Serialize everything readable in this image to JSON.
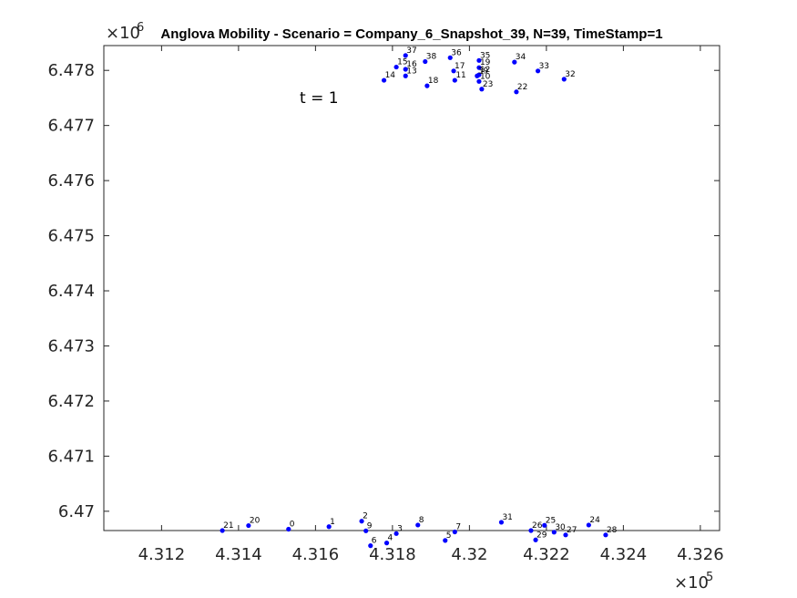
{
  "chart_data": {
    "type": "scatter",
    "title": "Anglova Mobility - Scenario = Company_6_Snapshot_39, N=39, TimeStamp=1",
    "annotation": "t = 1",
    "x_multiplier": "×10",
    "x_exponent": "5",
    "y_multiplier": "×10",
    "y_exponent": "6",
    "xlim": [
      431050,
      432650
    ],
    "ylim": [
      6469650,
      6478450
    ],
    "x_ticks": [
      431200,
      431400,
      431600,
      431800,
      432000,
      432200,
      432400,
      432600
    ],
    "x_tick_labels": [
      "4.312",
      "4.314",
      "4.316",
      "4.318",
      "4.32",
      "4.322",
      "4.324",
      "4.326"
    ],
    "y_ticks": [
      6470000,
      6471000,
      6472000,
      6473000,
      6474000,
      6475000,
      6476000,
      6477000,
      6478000
    ],
    "y_tick_labels": [
      "6.47",
      "6.471",
      "6.472",
      "6.473",
      "6.474",
      "6.475",
      "6.476",
      "6.477",
      "6.478"
    ],
    "grid": false,
    "marker_color": "#0000ff",
    "points": [
      {
        "label": "0",
        "x": 431530,
        "y": 6469675
      },
      {
        "label": "1",
        "x": 431635,
        "y": 6469720
      },
      {
        "label": "2",
        "x": 431720,
        "y": 6469820
      },
      {
        "label": "3",
        "x": 431810,
        "y": 6469595
      },
      {
        "label": "4",
        "x": 431785,
        "y": 6469425
      },
      {
        "label": "5",
        "x": 431937,
        "y": 6469470
      },
      {
        "label": "6",
        "x": 431743,
        "y": 6469375
      },
      {
        "label": "7",
        "x": 431962,
        "y": 6469625
      },
      {
        "label": "8",
        "x": 431866,
        "y": 6469750
      },
      {
        "label": "9",
        "x": 431731,
        "y": 6469645
      },
      {
        "label": "10",
        "x": 432025,
        "y": 6477800
      },
      {
        "label": "11",
        "x": 431962,
        "y": 6477820
      },
      {
        "label": "12",
        "x": 432025,
        "y": 6477920
      },
      {
        "label": "13",
        "x": 431834,
        "y": 6477900
      },
      {
        "label": "14",
        "x": 431778,
        "y": 6477820
      },
      {
        "label": "15",
        "x": 431810,
        "y": 6478060
      },
      {
        "label": "16",
        "x": 431834,
        "y": 6478020
      },
      {
        "label": "17",
        "x": 431959,
        "y": 6477990
      },
      {
        "label": "18",
        "x": 431890,
        "y": 6477720
      },
      {
        "label": "19",
        "x": 432025,
        "y": 6478050
      },
      {
        "label": "20",
        "x": 431426,
        "y": 6469740
      },
      {
        "label": "21",
        "x": 431358,
        "y": 6469650
      },
      {
        "label": "22",
        "x": 432122,
        "y": 6477610
      },
      {
        "label": "23",
        "x": 432032,
        "y": 6477660
      },
      {
        "label": "24",
        "x": 432310,
        "y": 6469750
      },
      {
        "label": "25",
        "x": 432195,
        "y": 6469745
      },
      {
        "label": "26",
        "x": 432160,
        "y": 6469650
      },
      {
        "label": "27",
        "x": 432250,
        "y": 6469570
      },
      {
        "label": "28",
        "x": 432354,
        "y": 6469570
      },
      {
        "label": "29",
        "x": 432172,
        "y": 6469480
      },
      {
        "label": "30",
        "x": 432220,
        "y": 6469620
      },
      {
        "label": "31",
        "x": 432083,
        "y": 6469800
      },
      {
        "label": "32",
        "x": 432246,
        "y": 6477840
      },
      {
        "label": "33",
        "x": 432178,
        "y": 6477990
      },
      {
        "label": "34",
        "x": 432117,
        "y": 6478150
      },
      {
        "label": "35",
        "x": 432025,
        "y": 6478180
      },
      {
        "label": "36",
        "x": 431950,
        "y": 6478230
      },
      {
        "label": "37",
        "x": 431834,
        "y": 6478270
      },
      {
        "label": "38",
        "x": 431885,
        "y": 6478160
      },
      {
        "label": "39",
        "x": 432020,
        "y": 6477900
      }
    ]
  }
}
